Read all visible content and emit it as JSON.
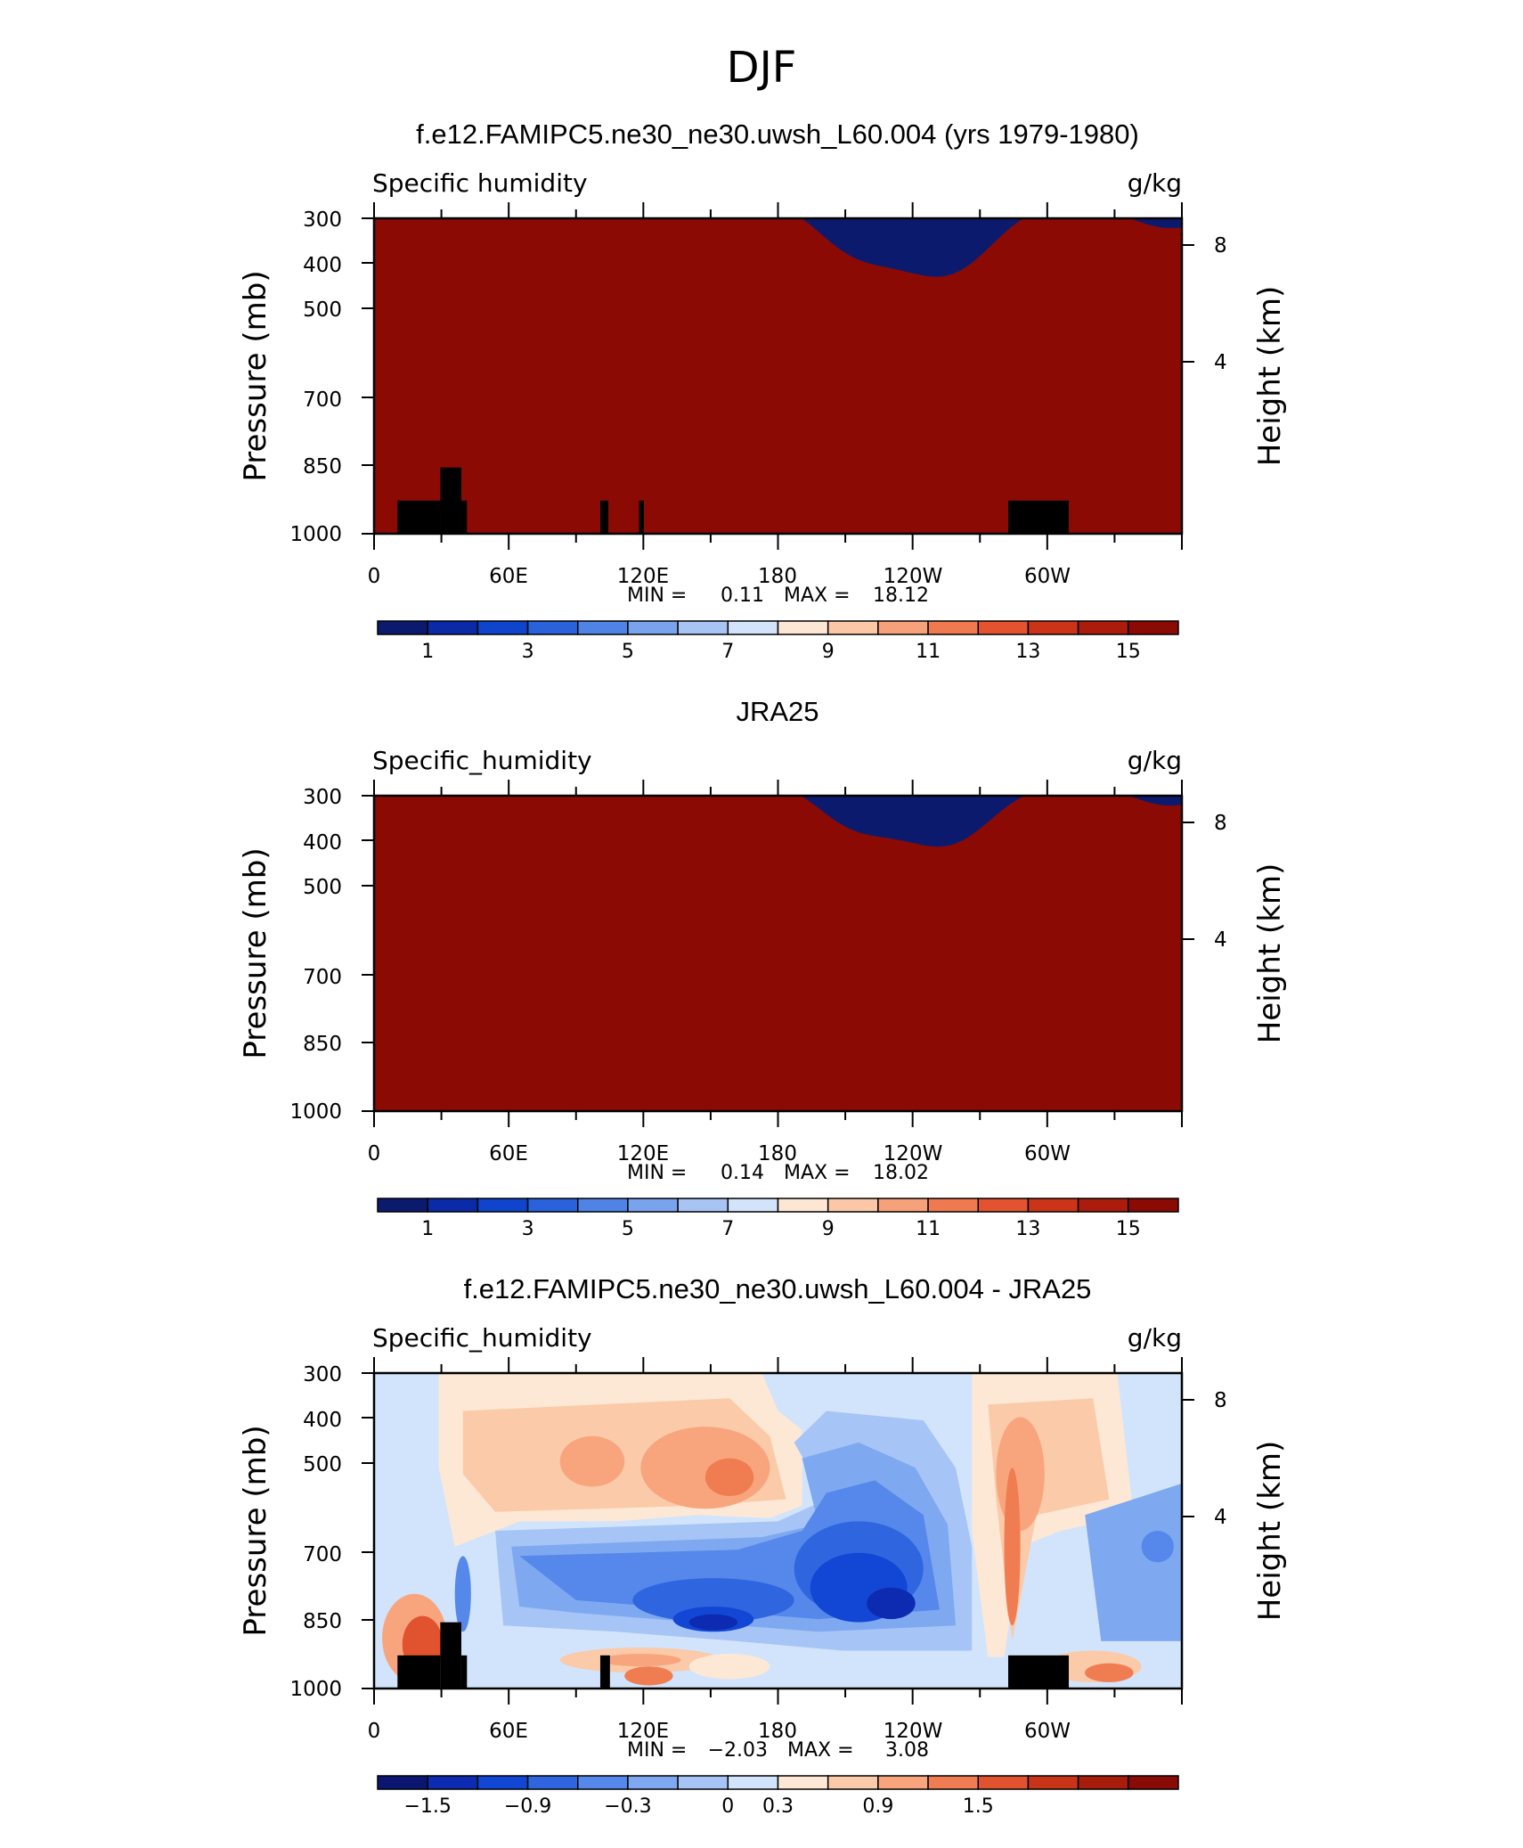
{
  "figure": {
    "title": "DJF",
    "panel_titles": [
      "f.e12.FAMIPC5.ne30_ne30.uwsh_L60.004 (yrs 1979-1980)",
      "JRA25",
      "f.e12.FAMIPC5.ne30_ne30.uwsh_L60.004 - JRA25"
    ]
  },
  "chart_data": [
    {
      "type": "heatmap",
      "title": "f.e12.FAMIPC5.ne30_ne30.uwsh_L60.004 (yrs 1979-1980)",
      "left_label": "Specific humidity",
      "units": "g/kg",
      "ylabel": "Pressure (mb)",
      "ylabel_right": "Height (km)",
      "x_ticks": [
        "0",
        "60E",
        "120E",
        "180",
        "120W",
        "60W"
      ],
      "y_ticks": [
        300,
        400,
        500,
        700,
        850,
        1000
      ],
      "y_ticks_right": [
        8,
        4
      ],
      "min_label": "MIN =",
      "min_value": "0.11",
      "max_label": "MAX =",
      "max_value": "18.12",
      "colorbar_labels": [
        "1",
        "3",
        "5",
        "7",
        "9",
        "11",
        "13",
        "15"
      ],
      "n_colors": 16,
      "field": "model"
    },
    {
      "type": "heatmap",
      "title": "JRA25",
      "left_label": "Specific_humidity",
      "units": "g/kg",
      "ylabel": "Pressure (mb)",
      "ylabel_right": "Height (km)",
      "x_ticks": [
        "0",
        "60E",
        "120E",
        "180",
        "120W",
        "60W"
      ],
      "y_ticks": [
        300,
        400,
        500,
        700,
        850,
        1000
      ],
      "y_ticks_right": [
        8,
        4
      ],
      "min_label": "MIN =",
      "min_value": "0.14",
      "max_label": "MAX =",
      "max_value": "18.02",
      "colorbar_labels": [
        "1",
        "3",
        "5",
        "7",
        "9",
        "11",
        "13",
        "15"
      ],
      "n_colors": 16,
      "field": "obs"
    },
    {
      "type": "heatmap",
      "title": "f.e12.FAMIPC5.ne30_ne30.uwsh_L60.004 - JRA25",
      "left_label": "Specific_humidity",
      "units": "g/kg",
      "ylabel": "Pressure (mb)",
      "ylabel_right": "Height (km)",
      "x_ticks": [
        "0",
        "60E",
        "120E",
        "180",
        "120W",
        "60W"
      ],
      "y_ticks": [
        300,
        400,
        500,
        700,
        850,
        1000
      ],
      "y_ticks_right": [
        8,
        4
      ],
      "min_label": "MIN =",
      "min_value": "−2.03",
      "max_label": "MAX =",
      "max_value": "3.08",
      "colorbar_labels": [
        "−1.5",
        "−0.9",
        "−0.3",
        "0",
        "0.3",
        "0.9",
        "1.5"
      ],
      "n_colors": 16,
      "field": "diff"
    }
  ],
  "palettes": {
    "humidity": [
      "#0c1a6e",
      "#0a2aa8",
      "#0f45cc",
      "#2a62dc",
      "#4f83e6",
      "#7aa3ee",
      "#a7c4f4",
      "#d3e3fa",
      "#fde7d4",
      "#fbc7a6",
      "#f7a17a",
      "#f07a50",
      "#e45330",
      "#cc3418",
      "#ab1c0c",
      "#8c0a04"
    ],
    "difference": [
      "#0b1670",
      "#0c2bb0",
      "#1246d4",
      "#2f66e0",
      "#5588ea",
      "#7ea8f0",
      "#a6c4f5",
      "#d2e4fb",
      "#fde8d6",
      "#fbcaa8",
      "#f8a57e",
      "#f07c52",
      "#e0532e",
      "#c83418",
      "#a81c0c",
      "#8a0a05"
    ],
    "topography": "#000000"
  }
}
